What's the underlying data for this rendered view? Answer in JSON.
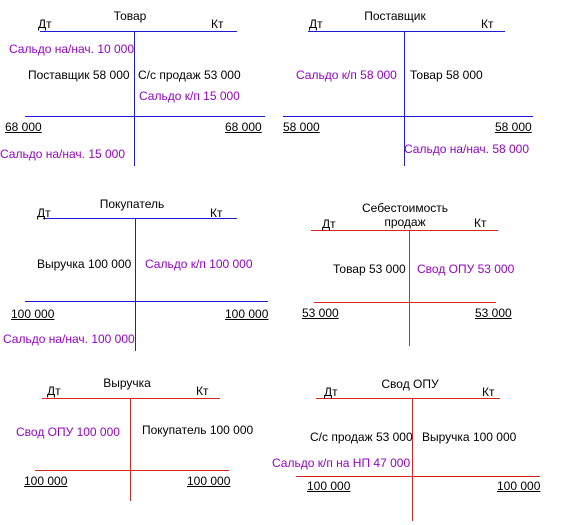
{
  "colors": {
    "blue_line": "#1c1cd6",
    "red_line": "#d9261c",
    "purple_text": "#9900cc",
    "text": "#000000"
  },
  "accounts": [
    {
      "title": "Товар",
      "dt": "Дт",
      "kt": "Кт",
      "items": [
        "Сальдо на/нач. 10 000",
        "Поставщик 58 000",
        "С/с продаж 53 000",
        "Сальдо к/п  15 000",
        "68 000",
        "68 000",
        "Сальдо на/нач. 15 000"
      ]
    },
    {
      "title": "Поставщик",
      "dt": "Дт",
      "kt": "Кт",
      "items": [
        "Сальдо к/п  58 000",
        "Товар  58 000",
        "58 000",
        "58 000",
        "Сальдо на/нач. 58 000"
      ]
    },
    {
      "title": "Покупатель",
      "dt": "Дт",
      "kt": "Кт",
      "items": [
        "Выручка 100 000",
        "Сальдо к/п  100 000",
        "100 000",
        "100 000",
        "Сальдо на/нач. 100 000"
      ]
    },
    {
      "title": "Себестоимость продаж",
      "title_line1": "Себестоимость",
      "title_line2": "продаж",
      "dt": "Дт",
      "kt": "Кт",
      "items": [
        "Товар 53 000",
        "Свод ОПУ  53 000",
        "53 000",
        "53 000"
      ]
    },
    {
      "title": "Выручка",
      "dt": "Дт",
      "kt": "Кт",
      "items": [
        "Свод ОПУ 100 000",
        "Покупатель 100 000",
        "100 000",
        "100 000"
      ]
    },
    {
      "title": "Свод ОПУ",
      "dt": "Дт",
      "kt": "Кт",
      "items": [
        "С/с продаж 53 000",
        "Выручка 100 000",
        "Сальдо к/п на НП  47 000",
        "100 000",
        "100 000"
      ]
    }
  ]
}
